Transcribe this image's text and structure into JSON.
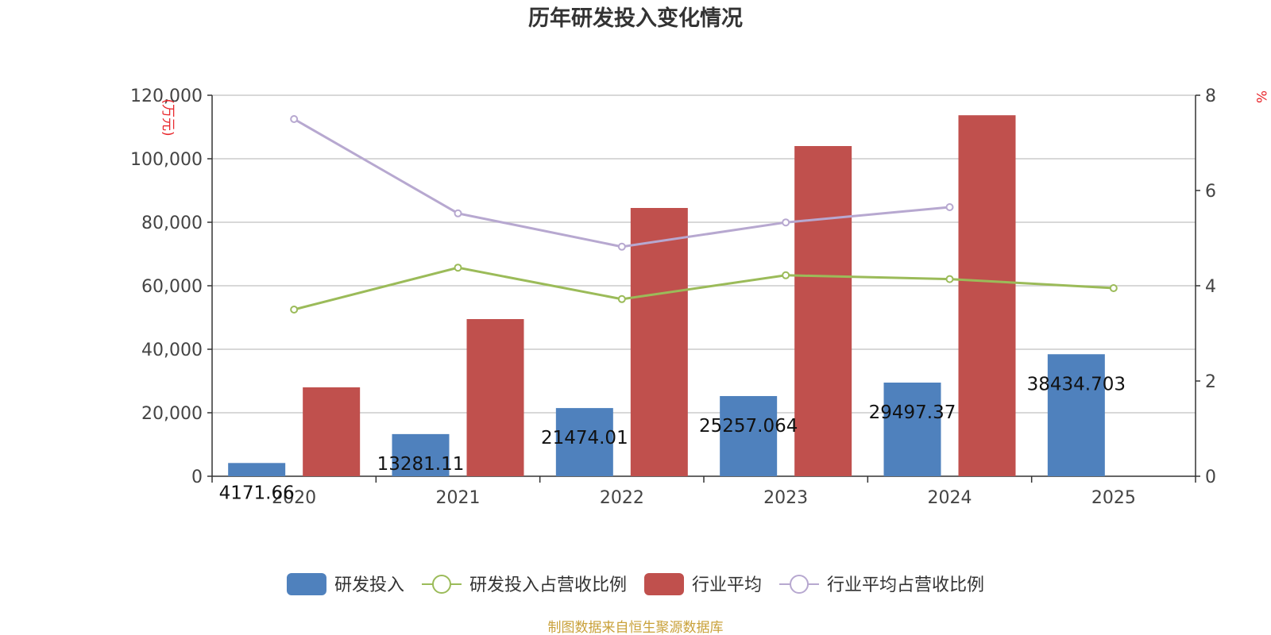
{
  "chart_data": {
    "type": "bar",
    "title": "历年研发投入变化情况",
    "categories": [
      "2020",
      "2021",
      "2022",
      "2023",
      "2024",
      "2025"
    ],
    "left_axis": {
      "unit": "(万元)",
      "ylim": [
        0,
        120000
      ],
      "ticks": [
        0,
        20000,
        40000,
        60000,
        80000,
        100000,
        120000
      ],
      "tick_labels": [
        "0",
        "20,000",
        "40,000",
        "60,000",
        "80,000",
        "100,000",
        "120,000"
      ]
    },
    "right_axis": {
      "unit": "%",
      "ylim": [
        0,
        8
      ],
      "ticks": [
        0,
        2,
        4,
        6,
        8
      ],
      "tick_labels": [
        "0",
        "2",
        "4",
        "6",
        "8"
      ]
    },
    "grid": true,
    "legend_position": "bottom-center",
    "series": [
      {
        "name": "研发投入",
        "type": "bar",
        "axis": "left",
        "color": "#4f81bd",
        "values": [
          4171.66,
          13281.11,
          21474.01,
          25257.064,
          29497.37,
          38434.703
        ],
        "labels": [
          "4171.66",
          "13281.11",
          "21474.01",
          "25257.064",
          "29497.37",
          "38434.703"
        ]
      },
      {
        "name": "研发投入占营收比例",
        "type": "line",
        "axis": "right",
        "color": "#9bbb59",
        "values": [
          3.5,
          4.38,
          3.72,
          4.22,
          4.14,
          3.95
        ]
      },
      {
        "name": "行业平均",
        "type": "bar",
        "axis": "left",
        "color": "#c0504d",
        "values": [
          28000,
          49500,
          84500,
          104000,
          113700,
          null
        ]
      },
      {
        "name": "行业平均占营收比例",
        "type": "line",
        "axis": "right",
        "color": "#b7a8d0",
        "values": [
          7.5,
          5.52,
          4.82,
          5.33,
          5.65,
          null
        ]
      }
    ]
  },
  "footer": {
    "source": "制图数据来自恒生聚源数据库"
  }
}
